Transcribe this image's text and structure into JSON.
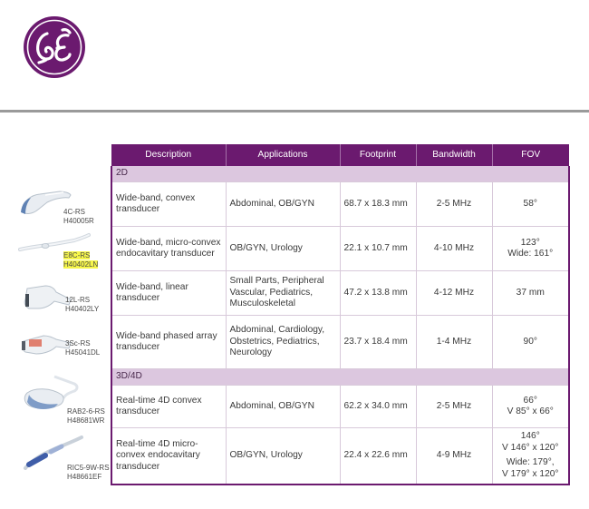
{
  "brand": {
    "logo_text": "GE",
    "logo_color": "#6b1a6f"
  },
  "colors": {
    "header": "#6b1a6f",
    "section": "#dcc7df",
    "highlight": "#f6f64a"
  },
  "table": {
    "headers": [
      "Description",
      "Applications",
      "Footprint",
      "Bandwidth",
      "FOV"
    ],
    "sections": [
      {
        "title": "2D",
        "rows": [
          {
            "description": "Wide-band, convex transducer",
            "applications": "Abdominal, OB/GYN",
            "footprint": "68.7 x 18.3 mm",
            "bandwidth": "2-5 MHz",
            "fov": [
              "58°"
            ]
          },
          {
            "description": "Wide-band, micro-convex endocavitary transducer",
            "applications": "OB/GYN, Urology",
            "footprint": "22.1 x 10.7 mm",
            "bandwidth": "4-10 MHz",
            "fov": [
              "123°",
              "Wide: 161°"
            ]
          },
          {
            "description": "Wide-band, linear transducer",
            "applications": "Small Parts, Peripheral Vascular, Pediatrics, Musculoskeletal",
            "footprint": "47.2 x 13.8 mm",
            "bandwidth": "4-12 MHz",
            "fov": [
              "37 mm"
            ]
          },
          {
            "description": "Wide-band phased array transducer",
            "applications": "Abdominal, Cardiology, Obstetrics, Pediatrics, Neurology",
            "footprint": "23.7 x 18.4 mm",
            "bandwidth": "1-4 MHz",
            "fov": [
              "90°"
            ]
          }
        ]
      },
      {
        "title": "3D/4D",
        "rows": [
          {
            "description": "Real-time 4D convex transducer",
            "applications": "Abdominal, OB/GYN",
            "footprint": "62.2 x 34.0 mm",
            "bandwidth": "2-5 MHz",
            "fov": [
              "66°",
              "V 85° x 66°"
            ]
          },
          {
            "description": "Real-time 4D micro-convex endocavitary transducer",
            "applications": "OB/GYN, Urology",
            "footprint": "22.4 x 22.6 mm",
            "bandwidth": "4-9 MHz",
            "fov": [
              "146°",
              "V 146° x 120°",
              "Wide: 179°,",
              "V 179° x 120°"
            ]
          }
        ]
      }
    ]
  },
  "probes": [
    {
      "model": "4C-RS",
      "part": "H40005R",
      "icon": "convex-probe"
    },
    {
      "model": "E8C-RS",
      "part": "H40402LN",
      "icon": "endocavity-probe",
      "highlighted": true
    },
    {
      "model": "12L-RS",
      "part": "H40402LY",
      "icon": "linear-probe"
    },
    {
      "model": "3Sc-RS",
      "part": "H45041DL",
      "icon": "phased-array-probe"
    },
    {
      "model": "RAB2-6-RS",
      "part": "H48681WR",
      "icon": "volume-convex-probe"
    },
    {
      "model": "RIC5-9W-RS",
      "part": "H48661EF",
      "icon": "volume-endocavity-probe"
    }
  ]
}
